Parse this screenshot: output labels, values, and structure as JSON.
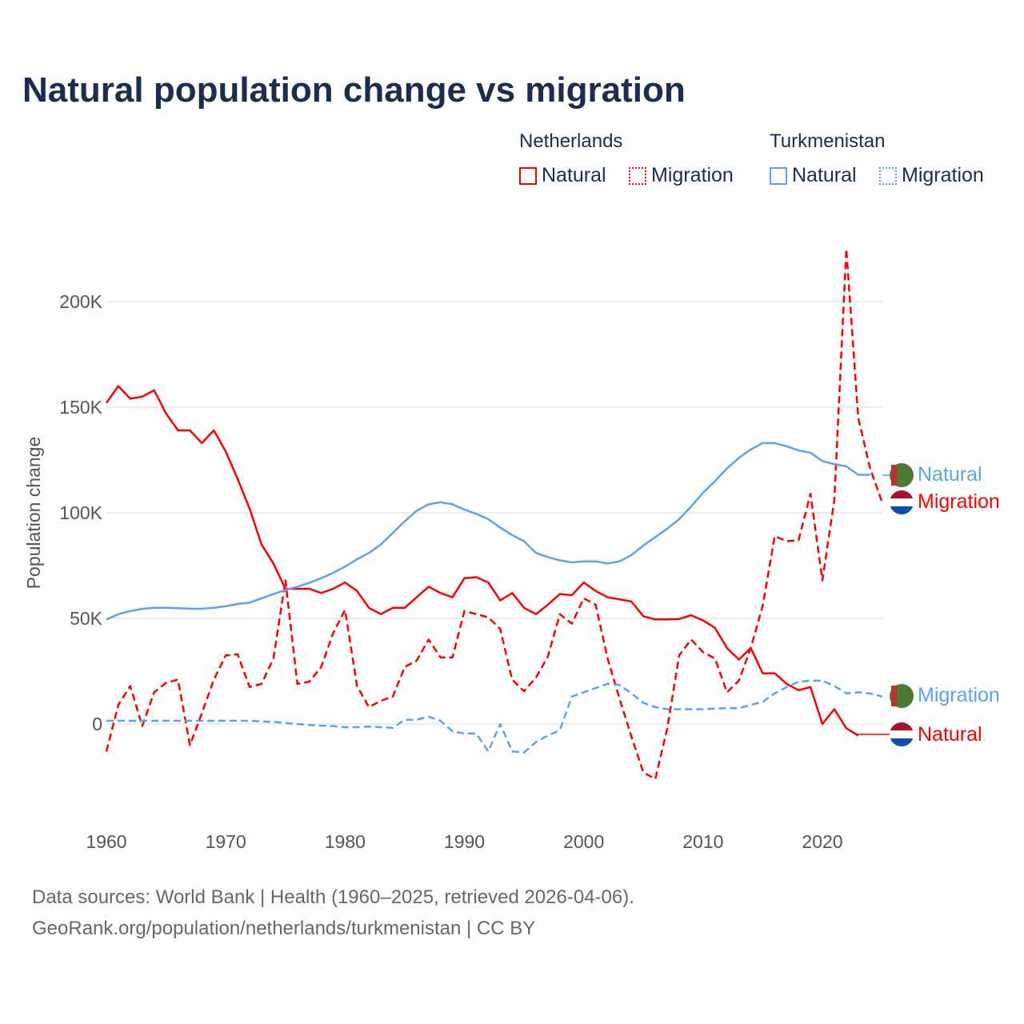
{
  "title": "Natural population change vs migration",
  "legend": {
    "groups": [
      {
        "name": "Netherlands",
        "items": [
          "Natural",
          "Migration"
        ],
        "color": "#ff0000"
      },
      {
        "name": "Turkmenistan",
        "items": [
          "Natural",
          "Migration"
        ],
        "color": "#5ba4e6"
      }
    ]
  },
  "end_labels": {
    "tm_natural": "Natural",
    "nl_migration": "Migration",
    "tm_migration": "Migration",
    "nl_natural": "Natural"
  },
  "footer": {
    "line1": "Data sources: World Bank | Health (1960–2025, retrieved 2026-04-06).",
    "line2": "GeoRank.org/population/netherlands/turkmenistan | CC BY"
  },
  "chart_data": {
    "type": "line",
    "title": "Natural population change vs migration",
    "xlabel": "",
    "ylabel": "Population change",
    "xlim": [
      1960,
      2025
    ],
    "ylim": [
      -40000,
      225000
    ],
    "x_ticks": [
      "1960",
      "1970",
      "1980",
      "1990",
      "2000",
      "2010",
      "2020"
    ],
    "y_ticks": [
      {
        "v": 0,
        "label": "0"
      },
      {
        "v": 50000,
        "label": "50K"
      },
      {
        "v": 100000,
        "label": "100K"
      },
      {
        "v": 150000,
        "label": "150K"
      },
      {
        "v": 200000,
        "label": "200K"
      }
    ],
    "x_start": 1960,
    "series": [
      {
        "name": "Netherlands Natural",
        "color": "#ff0000",
        "dash": false,
        "values_k": [
          152,
          160,
          154,
          155,
          158,
          147,
          139,
          139,
          133,
          139,
          129,
          116,
          102,
          85,
          76,
          64,
          64,
          64,
          62,
          64,
          67,
          63,
          55,
          52,
          55,
          55,
          60,
          65,
          62,
          60,
          69,
          69.5,
          67,
          58.5,
          62,
          55,
          52,
          56.5,
          61.5,
          61,
          67,
          63,
          60,
          59,
          58,
          51,
          49.5,
          49.5,
          49.7,
          51.5,
          49,
          45.5,
          36,
          30.5,
          36,
          24,
          24,
          19,
          16,
          17.5,
          0,
          7,
          -2,
          -5.5
        ]
      },
      {
        "name": "Netherlands Migration",
        "color": "#ff0000",
        "dash": true,
        "values_k": [
          -13,
          9,
          18,
          -1,
          15,
          19.5,
          21,
          -10,
          5,
          21,
          32.5,
          33,
          17.5,
          19,
          31,
          68,
          19,
          20,
          27,
          43,
          54,
          18,
          8,
          11,
          13,
          27,
          30,
          40,
          31.5,
          31.5,
          53.5,
          52,
          50.5,
          45,
          21,
          15.5,
          22,
          32,
          52,
          47.5,
          59.5,
          56.5,
          31,
          12,
          -6,
          -23,
          -26,
          -2,
          32.5,
          40,
          34,
          31,
          15,
          20.5,
          36,
          56,
          89,
          86.5,
          87,
          109,
          68,
          106,
          225,
          145,
          121,
          105
        ]
      },
      {
        "name": "Turkmenistan Natural",
        "color": "#5ba4e6",
        "dash": false,
        "values_k": [
          49.5,
          52,
          53.5,
          54.5,
          55,
          55,
          54.8,
          54.6,
          54.6,
          55,
          55.8,
          56.8,
          57.5,
          59.5,
          61.5,
          63.5,
          65,
          66.8,
          69,
          71.5,
          74.5,
          78,
          81,
          85,
          90.5,
          96,
          101,
          104,
          105,
          104,
          101.5,
          99.5,
          97,
          93,
          89.5,
          86.5,
          81,
          79,
          77.5,
          76.5,
          77,
          77,
          76,
          77,
          80,
          84.5,
          88.5,
          92.5,
          97,
          103,
          109.5,
          115,
          121,
          126,
          130,
          133,
          133,
          131.5,
          129.5,
          128.5,
          124.5,
          123,
          122,
          118,
          118
        ]
      },
      {
        "name": "Turkmenistan Migration",
        "color": "#5ba4e6",
        "dash": true,
        "values_k": [
          1.5,
          1.5,
          1.5,
          1.5,
          1.5,
          1.5,
          1.5,
          1.5,
          1.5,
          1.5,
          1.5,
          1.5,
          1.5,
          1.2,
          1,
          0.5,
          0,
          -0.5,
          -0.8,
          -1,
          -1.5,
          -1.5,
          -1.2,
          -1.5,
          -1.8,
          2,
          2,
          3.5,
          1.5,
          -3.5,
          -4.5,
          -4.5,
          -13,
          0,
          -13,
          -13.5,
          -8.5,
          -5.5,
          -3,
          13,
          15,
          17,
          19,
          18.5,
          14.5,
          10,
          8,
          7,
          7,
          7,
          7,
          7.3,
          7.5,
          7.5,
          9,
          10.5,
          14.5,
          17.5,
          20,
          20.5,
          20.5,
          18,
          14.5,
          15,
          14.5,
          13
        ]
      }
    ]
  }
}
